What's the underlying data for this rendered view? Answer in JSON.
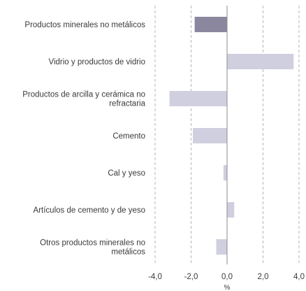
{
  "chart_data": {
    "type": "bar",
    "orientation": "horizontal",
    "categories": [
      [
        "Productos minerales no metálicos"
      ],
      [
        "Vidrio y productos de vidrio"
      ],
      [
        "Productos de arcilla y cerámica no",
        "refractaria"
      ],
      [
        "Cemento"
      ],
      [
        "Cal y yeso"
      ],
      [
        "Artículos de cemento y de yeso"
      ],
      [
        "Otros productos minerales no",
        "metálicos"
      ]
    ],
    "values": [
      -1.8,
      3.7,
      -3.2,
      -1.9,
      -0.2,
      0.4,
      -0.6
    ],
    "bar_colors": [
      "#8a879e",
      "#cfcfe0",
      "#cfcfe0",
      "#cfcfe0",
      "#cfcfe0",
      "#cfcfe0",
      "#cfcfe0"
    ],
    "xlim": [
      -4.0,
      4.0
    ],
    "xticks": [
      -4.0,
      -2.0,
      0.0,
      2.0,
      4.0
    ],
    "xtick_labels": [
      "-4,0",
      "-2,0",
      "0,0",
      "2,0",
      "4,0"
    ],
    "xlabel": "%",
    "grid": "vertical dashed"
  }
}
